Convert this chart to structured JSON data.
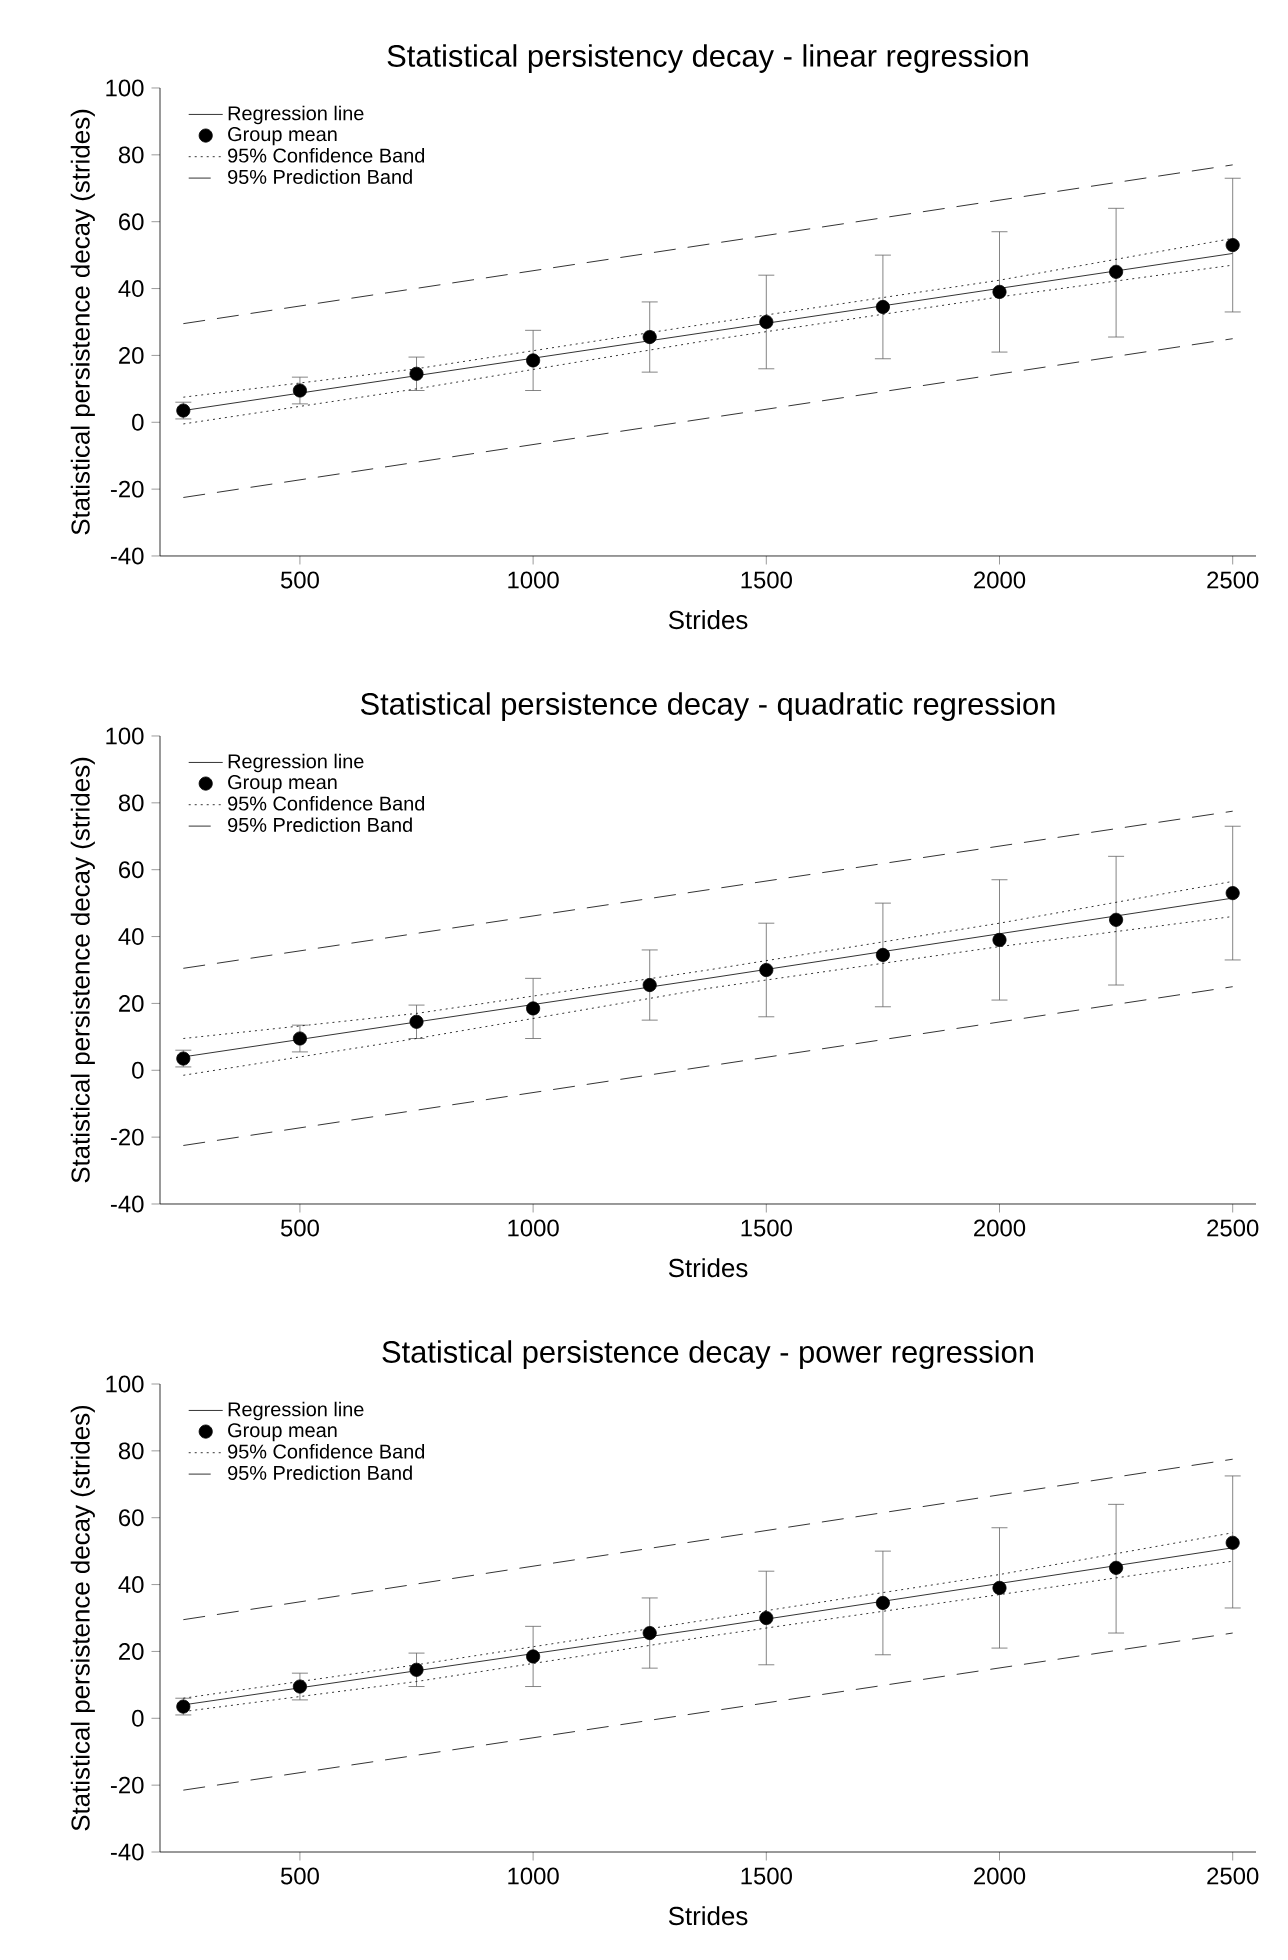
{
  "chart_data": [
    {
      "type": "line",
      "title": "Statistical persistency decay - linear regression",
      "xlabel": "Strides",
      "ylabel": "Statistical persistence decay (strides)",
      "xlim": [
        200,
        2550
      ],
      "ylim": [
        -40,
        100
      ],
      "xticks": [
        500,
        1000,
        1500,
        2000,
        2500
      ],
      "yticks": [
        -40,
        -20,
        0,
        20,
        40,
        60,
        80,
        100
      ],
      "legend": "top left",
      "grid": false,
      "series": [
        {
          "name": "Regression line",
          "type": "line",
          "marker": "none",
          "line_style": "solid",
          "color": "#000000",
          "x": [
            250,
            2500
          ],
          "values": [
            3.5,
            50.5
          ]
        },
        {
          "name": "Group mean",
          "type": "scatter",
          "marker": "circle",
          "color": "#000000",
          "x": [
            250,
            500,
            750,
            1000,
            1250,
            1500,
            1750,
            2000,
            2250,
            2500
          ],
          "values": [
            3.5,
            9.5,
            14.5,
            18.5,
            25.5,
            30,
            34.5,
            39,
            45,
            53
          ],
          "errors": [
            [
              1,
              6
            ],
            [
              5.5,
              13.5
            ],
            [
              9.5,
              19.5
            ],
            [
              9.5,
              27.5
            ],
            [
              15,
              36
            ],
            [
              16,
              44
            ],
            [
              19,
              50
            ],
            [
              21,
              57
            ],
            [
              25.5,
              64
            ],
            [
              33,
              73
            ]
          ]
        },
        {
          "name": "95% Confidence Band",
          "type": "line",
          "marker": "none",
          "line_style": "dotted",
          "color": "#000000",
          "x": [
            250,
            750,
            1375,
            2000,
            2500
          ],
          "values": [
            7.5,
            16,
            29.5,
            42.5,
            55
          ]
        },
        {
          "type": "line",
          "marker": "none",
          "line_style": "dotted",
          "color": "#000000",
          "x": [
            250,
            750,
            1375,
            2000,
            2500
          ],
          "values": [
            -0.5,
            10,
            24.5,
            37.5,
            47
          ]
        },
        {
          "name": "95% Prediction Band",
          "type": "line",
          "marker": "none",
          "line_style": "dashed",
          "color": "#000000",
          "x": [
            250,
            2500
          ],
          "values": [
            29.5,
            77
          ]
        },
        {
          "type": "line",
          "marker": "none",
          "line_style": "dashed",
          "color": "#000000",
          "x": [
            250,
            2500
          ],
          "values": [
            -22.5,
            25
          ]
        }
      ]
    },
    {
      "type": "line",
      "title": "Statistical persistence decay - quadratic regression",
      "xlabel": "Strides",
      "ylabel": "Statistical persistence decay (strides)",
      "xlim": [
        200,
        2550
      ],
      "ylim": [
        -40,
        100
      ],
      "xticks": [
        500,
        1000,
        1500,
        2000,
        2500
      ],
      "yticks": [
        -40,
        -20,
        0,
        20,
        40,
        60,
        80,
        100
      ],
      "legend": "top left",
      "grid": false,
      "series": [
        {
          "name": "Regression line",
          "type": "line",
          "marker": "none",
          "line_style": "solid",
          "color": "#000000",
          "x": [
            250,
            1375,
            2500
          ],
          "values": [
            4,
            27.5,
            51.5
          ]
        },
        {
          "name": "Group mean",
          "type": "scatter",
          "marker": "circle",
          "color": "#000000",
          "x": [
            250,
            500,
            750,
            1000,
            1250,
            1500,
            1750,
            2000,
            2250,
            2500
          ],
          "values": [
            3.5,
            9.5,
            14.5,
            18.5,
            25.5,
            30,
            34.5,
            39,
            45,
            53
          ],
          "errors": [
            [
              1,
              6
            ],
            [
              5.5,
              13.5
            ],
            [
              9.5,
              19.5
            ],
            [
              9.5,
              27.5
            ],
            [
              15,
              36
            ],
            [
              16,
              44
            ],
            [
              19,
              50
            ],
            [
              21,
              57
            ],
            [
              25.5,
              64
            ],
            [
              33,
              73
            ]
          ]
        },
        {
          "name": "95% Confidence Band",
          "type": "line",
          "marker": "none",
          "line_style": "dotted",
          "color": "#000000",
          "x": [
            250,
            750,
            1375,
            2000,
            2500
          ],
          "values": [
            9.5,
            17,
            30,
            44,
            56.5
          ]
        },
        {
          "type": "line",
          "marker": "none",
          "line_style": "dotted",
          "color": "#000000",
          "x": [
            250,
            750,
            1375,
            2000,
            2500
          ],
          "values": [
            -1.5,
            9.5,
            24.5,
            37,
            46
          ]
        },
        {
          "name": "95% Prediction Band",
          "type": "line",
          "marker": "none",
          "line_style": "dashed",
          "color": "#000000",
          "x": [
            250,
            2500
          ],
          "values": [
            30.5,
            77.5
          ]
        },
        {
          "type": "line",
          "marker": "none",
          "line_style": "dashed",
          "color": "#000000",
          "x": [
            250,
            2500
          ],
          "values": [
            -22.5,
            25
          ]
        }
      ]
    },
    {
      "type": "line",
      "title": "Statistical persistence decay - power regression",
      "xlabel": "Strides",
      "ylabel": "Statistical persistence decay (strides)",
      "xlim": [
        200,
        2550
      ],
      "ylim": [
        -40,
        100
      ],
      "xticks": [
        500,
        1000,
        1500,
        2000,
        2500
      ],
      "yticks": [
        -40,
        -20,
        0,
        20,
        40,
        60,
        80,
        100
      ],
      "legend": "top left",
      "grid": false,
      "series": [
        {
          "name": "Regression line",
          "type": "line",
          "marker": "none",
          "line_style": "solid",
          "color": "#000000",
          "x": [
            250,
            1375,
            2500
          ],
          "values": [
            4,
            27,
            51
          ]
        },
        {
          "name": "Group mean",
          "type": "scatter",
          "marker": "circle",
          "color": "#000000",
          "x": [
            250,
            500,
            750,
            1000,
            1250,
            1500,
            1750,
            2000,
            2250,
            2500
          ],
          "values": [
            3.5,
            9.5,
            14.5,
            18.5,
            25.5,
            30,
            34.5,
            39,
            45,
            52.5
          ],
          "errors": [
            [
              1,
              6
            ],
            [
              5.5,
              13.5
            ],
            [
              9.5,
              19.5
            ],
            [
              9.5,
              27.5
            ],
            [
              15,
              36
            ],
            [
              16,
              44
            ],
            [
              19,
              50
            ],
            [
              21,
              57
            ],
            [
              25.5,
              64
            ],
            [
              33,
              72.5
            ]
          ]
        },
        {
          "name": "95% Confidence Band",
          "type": "line",
          "marker": "none",
          "line_style": "dotted",
          "color": "#000000",
          "x": [
            250,
            750,
            1375,
            2000,
            2500
          ],
          "values": [
            6,
            16,
            29.5,
            43,
            55.5
          ]
        },
        {
          "type": "line",
          "marker": "none",
          "line_style": "dotted",
          "color": "#000000",
          "x": [
            250,
            750,
            1375,
            2000,
            2500
          ],
          "values": [
            2,
            11,
            24.5,
            37,
            47
          ]
        },
        {
          "name": "95% Prediction Band",
          "type": "line",
          "marker": "none",
          "line_style": "dashed",
          "color": "#000000",
          "x": [
            250,
            2500
          ],
          "values": [
            29.5,
            77.5
          ]
        },
        {
          "type": "line",
          "marker": "none",
          "line_style": "dashed",
          "color": "#000000",
          "x": [
            250,
            2500
          ],
          "values": [
            -21.5,
            25.5
          ]
        }
      ]
    }
  ]
}
